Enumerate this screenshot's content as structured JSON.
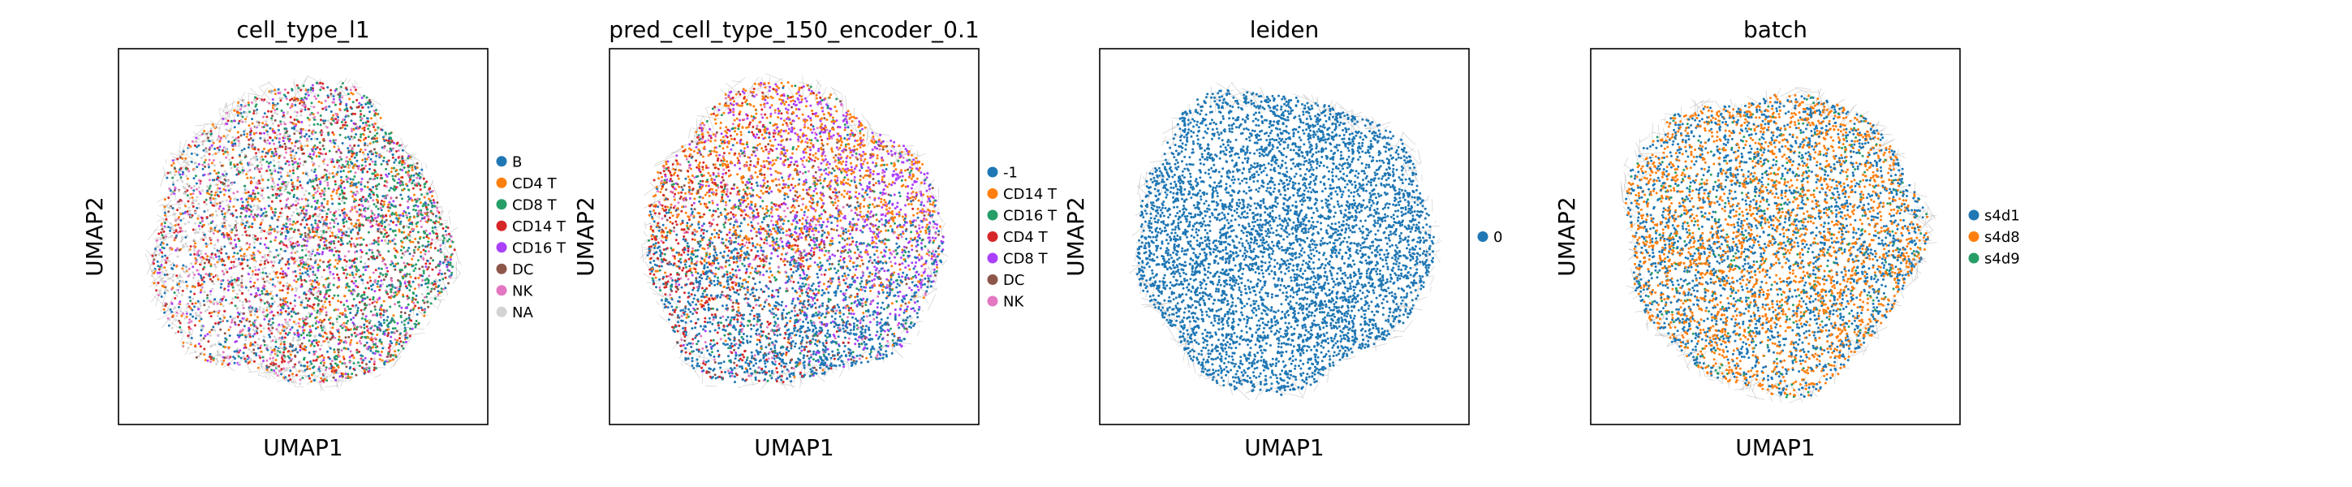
{
  "chart_data": [
    {
      "type": "scatter",
      "title": "cell_type_l1",
      "xlabel": "UMAP1",
      "ylabel": "UMAP2",
      "grid": false,
      "legend_position": "right",
      "series": [
        {
          "name": "B",
          "color": "#1f77b4"
        },
        {
          "name": "CD4 T",
          "color": "#ff7f0e"
        },
        {
          "name": "CD8 T",
          "color": "#279e68"
        },
        {
          "name": "CD14 T",
          "color": "#d62728"
        },
        {
          "name": "CD16 T",
          "color": "#aa40fc"
        },
        {
          "name": "DC",
          "color": "#8c564b"
        },
        {
          "name": "NK",
          "color": "#e377c2"
        },
        {
          "name": "NA",
          "color": "#d3d3d3"
        }
      ]
    },
    {
      "type": "scatter",
      "title": "pred_cell_type_150_encoder_0.1",
      "xlabel": "UMAP1",
      "ylabel": "UMAP2",
      "grid": false,
      "legend_position": "right",
      "series": [
        {
          "name": "-1",
          "color": "#1f77b4"
        },
        {
          "name": "CD14 T",
          "color": "#ff7f0e"
        },
        {
          "name": "CD16 T",
          "color": "#279e68"
        },
        {
          "name": "CD4 T",
          "color": "#d62728"
        },
        {
          "name": "CD8 T",
          "color": "#aa40fc"
        },
        {
          "name": "DC",
          "color": "#8c564b"
        },
        {
          "name": "NK",
          "color": "#e377c2"
        }
      ]
    },
    {
      "type": "scatter",
      "title": "leiden",
      "xlabel": "UMAP1",
      "ylabel": "UMAP2",
      "grid": false,
      "legend_position": "right",
      "series": [
        {
          "name": "0",
          "color": "#1f77b4"
        }
      ]
    },
    {
      "type": "scatter",
      "title": "batch",
      "xlabel": "UMAP1",
      "ylabel": "UMAP2",
      "grid": false,
      "legend_position": "right",
      "series": [
        {
          "name": "s4d1",
          "color": "#1f77b4"
        },
        {
          "name": "s4d8",
          "color": "#ff7f0e"
        },
        {
          "name": "s4d9",
          "color": "#279e68"
        }
      ]
    }
  ]
}
